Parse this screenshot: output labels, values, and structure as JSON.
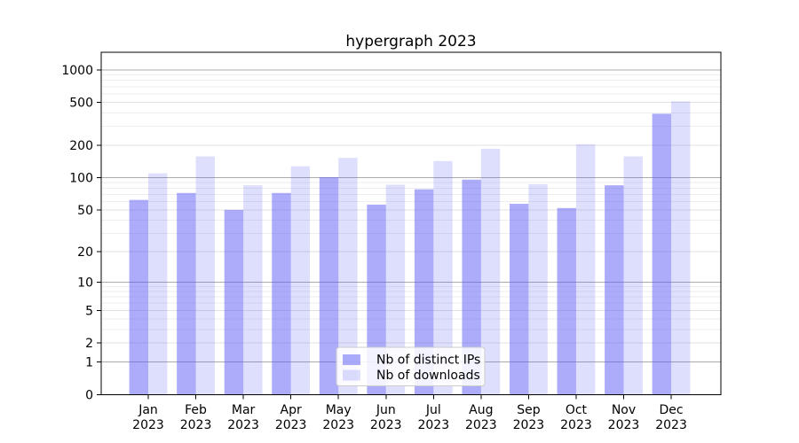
{
  "chart_data": {
    "type": "bar",
    "title": "hypergraph 2023",
    "categories": [
      "Jan",
      "Feb",
      "Mar",
      "Apr",
      "May",
      "Jun",
      "Jul",
      "Aug",
      "Sep",
      "Oct",
      "Nov",
      "Dec"
    ],
    "x_year_label": "2023",
    "series": [
      {
        "name": "Nb of distinct IPs",
        "color": "rgba(90,90,245,0.5)",
        "base_hex": "#5a5af5",
        "values": [
          62,
          72,
          50,
          72,
          101,
          56,
          78,
          96,
          57,
          52,
          85,
          393
        ]
      },
      {
        "name": "Nb of downloads",
        "color": "rgba(90,90,245,0.2)",
        "base_hex": "#5a5af5",
        "values": [
          110,
          158,
          85,
          128,
          153,
          86,
          143,
          186,
          87,
          205,
          158,
          512
        ]
      }
    ],
    "y_ticks": [
      0,
      1,
      2,
      5,
      10,
      20,
      50,
      100,
      200,
      500,
      1000
    ],
    "y_scale": "log10(1+v) pseudo-log, 0 at baseline",
    "ylim": [
      0,
      1455
    ],
    "xlabel": "",
    "ylabel": "",
    "grid": "horizontal, major lines at powers of 10 darker, minor lines lighter",
    "legend_position": "lower center inside plot"
  }
}
